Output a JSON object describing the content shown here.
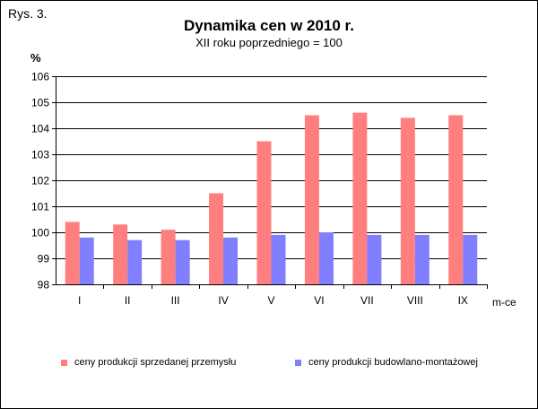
{
  "figure_label": "Rys. 3.",
  "colors": {
    "series1": "#FF7F7F",
    "series2": "#7F7FFF",
    "grid": "#000000",
    "background": "#ffffff"
  },
  "chart_data": {
    "type": "bar",
    "title": "Dynamika cen w 2010 r.",
    "subtitle": "XII roku poprzedniego = 100",
    "ylabel": "%",
    "xlabel": "m-ce",
    "ylim": [
      98,
      106
    ],
    "yticks": [
      98,
      99,
      100,
      101,
      102,
      103,
      104,
      105,
      106
    ],
    "grid": true,
    "legend_position": "bottom",
    "categories": [
      "I",
      "II",
      "III",
      "IV",
      "V",
      "VI",
      "VII",
      "VIII",
      "IX"
    ],
    "series": [
      {
        "name": "ceny produkcji sprzedanej przemysłu",
        "values": [
          100.4,
          100.3,
          100.1,
          101.5,
          103.5,
          104.5,
          104.6,
          104.4,
          104.5
        ]
      },
      {
        "name": "ceny produkcji budowlano-montażowej",
        "values": [
          99.8,
          99.7,
          99.7,
          99.8,
          99.9,
          100.0,
          99.9,
          99.9,
          99.9
        ]
      }
    ]
  }
}
